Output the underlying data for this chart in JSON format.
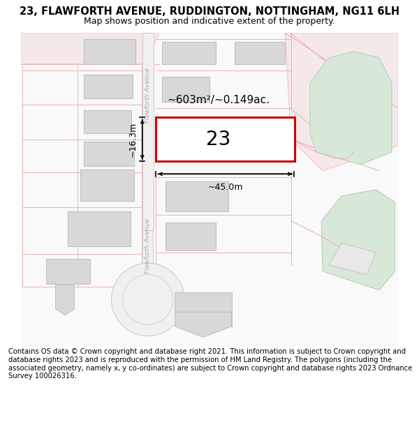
{
  "title": "23, FLAWFORTH AVENUE, RUDDINGTON, NOTTINGHAM, NG11 6LH",
  "subtitle": "Map shows position and indicative extent of the property.",
  "footer": "Contains OS data © Crown copyright and database right 2021. This information is subject to Crown copyright and database rights 2023 and is reproduced with the permission of HM Land Registry. The polygons (including the associated geometry, namely x, y co-ordinates) are subject to Crown copyright and database rights 2023 Ordnance Survey 100026316.",
  "area_label": "~603m²/~0.149ac.",
  "width_label": "~45.0m",
  "height_label": "~16.3m",
  "plot_number": "23",
  "bg_color": "#ffffff",
  "road_fill": "#f0f0f0",
  "road_edge": "#d0c8c8",
  "plot_stroke": "#cc0000",
  "green_fill": "#d8e8d8",
  "green_stroke": "#b8d0b8",
  "building_fill": "#d8d8d8",
  "building_stroke": "#c0c0c0",
  "boundary_color": "#f0b0b0",
  "title_fontsize": 10.5,
  "subtitle_fontsize": 9,
  "footer_fontsize": 7.2,
  "number_fontsize": 20,
  "area_fontsize": 11,
  "dim_fontsize": 9
}
